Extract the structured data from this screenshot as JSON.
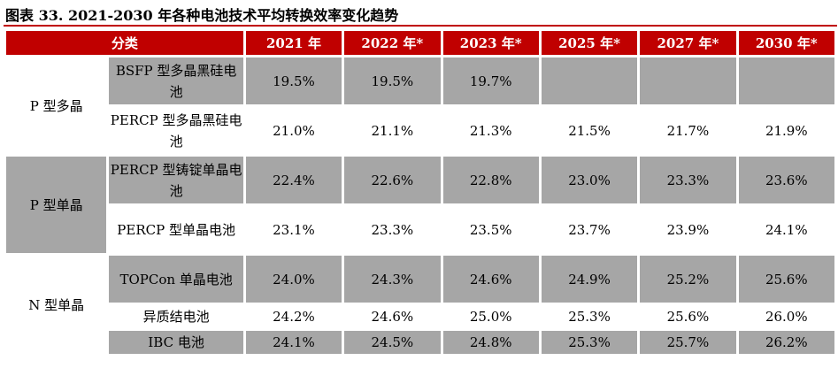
{
  "title": "图表 33. 2021-2030 年各种电池技术平均转换效率变化趋势",
  "table": {
    "headers": [
      "分类",
      "2021 年",
      "2022 年*",
      "2023 年*",
      "2025 年*",
      "2027 年*",
      "2030 年*"
    ],
    "groups": [
      "P 型多晶",
      "P 型单晶",
      "N 型单晶"
    ],
    "rows": [
      {
        "name": "BSFP 型多晶黑硅电池",
        "values": [
          "19.5%",
          "19.5%",
          "19.7%",
          "",
          "",
          ""
        ]
      },
      {
        "name": "PERCP 型多晶黑硅电池",
        "values": [
          "21.0%",
          "21.1%",
          "21.3%",
          "21.5%",
          "21.7%",
          "21.9%"
        ]
      },
      {
        "name": "PERCP 型铸锭单晶电池",
        "values": [
          "22.4%",
          "22.6%",
          "22.8%",
          "23.0%",
          "23.3%",
          "23.6%"
        ]
      },
      {
        "name": "PERCP 型单晶电池",
        "values": [
          "23.1%",
          "23.3%",
          "23.5%",
          "23.7%",
          "23.9%",
          "24.1%"
        ]
      },
      {
        "name": "TOPCon 单晶电池",
        "values": [
          "24.0%",
          "24.3%",
          "24.6%",
          "24.9%",
          "25.2%",
          "25.6%"
        ]
      },
      {
        "name": "异质结电池",
        "values": [
          "24.2%",
          "24.6%",
          "25.0%",
          "25.3%",
          "25.6%",
          "26.0%"
        ]
      },
      {
        "name": "IBC 电池",
        "values": [
          "24.1%",
          "24.5%",
          "24.8%",
          "25.3%",
          "25.7%",
          "26.2%"
        ]
      }
    ]
  },
  "colors": {
    "header_bg": "#c00000",
    "header_text": "#ffffff",
    "shaded_row": "#a6a6a6",
    "plain_row": "#ffffff"
  }
}
